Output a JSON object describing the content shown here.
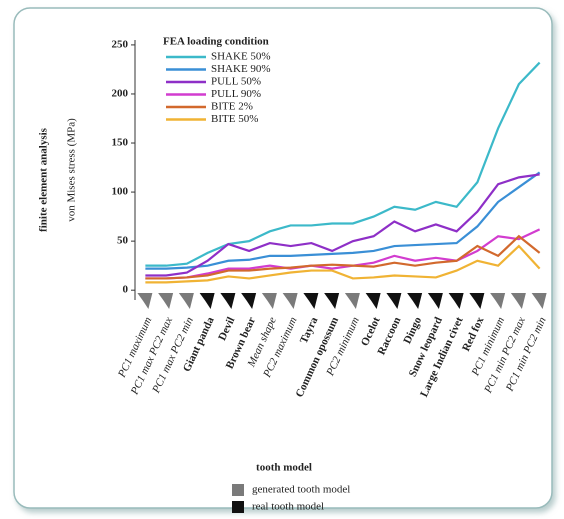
{
  "chart_data": {
    "type": "line",
    "y_title_main": "finite element analysis",
    "y_title": "von Mises stress (MPa)",
    "x_title": "tooth model",
    "legend_title": "FEA loading condition",
    "categories": [
      "PC1 maximum",
      "PC1 max PC2 max",
      "PC1 max PC2 min",
      "Giant panda",
      "Devil",
      "Brown bear",
      "Mean shape",
      "PC2 maximum",
      "Tayra",
      "Common opossum",
      "PC2 minimum",
      "Ocelot",
      "Raccoon",
      "Dingo",
      "Snow leopard",
      "Large Indian civet",
      "Red fox",
      "PC1 minimum",
      "PC1 min PC2 max",
      "PC1 min PC2 min"
    ],
    "tooth_colors": [
      "#7a7a7a",
      "#7a7a7a",
      "#7a7a7a",
      "#111111",
      "#111111",
      "#111111",
      "#7a7a7a",
      "#7a7a7a",
      "#111111",
      "#111111",
      "#7a7a7a",
      "#111111",
      "#111111",
      "#111111",
      "#111111",
      "#111111",
      "#111111",
      "#7a7a7a",
      "#7a7a7a",
      "#7a7a7a"
    ],
    "series": [
      {
        "name": "SHAKE 50%",
        "color": "#3cb9c9",
        "values": [
          25,
          25,
          27,
          38,
          47,
          50,
          60,
          66,
          66,
          68,
          68,
          75,
          85,
          82,
          90,
          85,
          110,
          165,
          210,
          232
        ]
      },
      {
        "name": "SHAKE 90%",
        "color": "#3a8fd6",
        "values": [
          22,
          22,
          23,
          25,
          30,
          31,
          35,
          35,
          36,
          37,
          38,
          40,
          45,
          46,
          47,
          48,
          65,
          90,
          105,
          120
        ]
      },
      {
        "name": "PULL 50%",
        "color": "#8e2fc7",
        "values": [
          15,
          15,
          18,
          30,
          47,
          40,
          48,
          45,
          48,
          40,
          50,
          55,
          70,
          60,
          67,
          60,
          80,
          108,
          115,
          118
        ]
      },
      {
        "name": "PULL 90%",
        "color": "#d23ccf",
        "values": [
          12,
          12,
          13,
          17,
          22,
          22,
          25,
          22,
          25,
          22,
          25,
          28,
          35,
          30,
          33,
          30,
          40,
          55,
          52,
          62
        ]
      },
      {
        "name": "BITE 2%",
        "color": "#d2692d",
        "values": [
          12,
          12,
          13,
          15,
          20,
          20,
          22,
          23,
          25,
          26,
          25,
          24,
          28,
          25,
          28,
          30,
          45,
          35,
          55,
          38
        ]
      },
      {
        "name": "BITE 50%",
        "color": "#f0b334",
        "values": [
          8,
          8,
          9,
          10,
          14,
          12,
          15,
          18,
          20,
          20,
          12,
          13,
          15,
          14,
          13,
          20,
          30,
          25,
          45,
          22
        ]
      }
    ],
    "tooth_legend": [
      {
        "label": "generated tooth model",
        "color": "#7a7a7a"
      },
      {
        "label": "real tooth model",
        "color": "#111111"
      }
    ],
    "ylim": [
      -10,
      255
    ],
    "yticks": [
      0,
      50,
      100,
      150,
      200,
      250
    ]
  }
}
